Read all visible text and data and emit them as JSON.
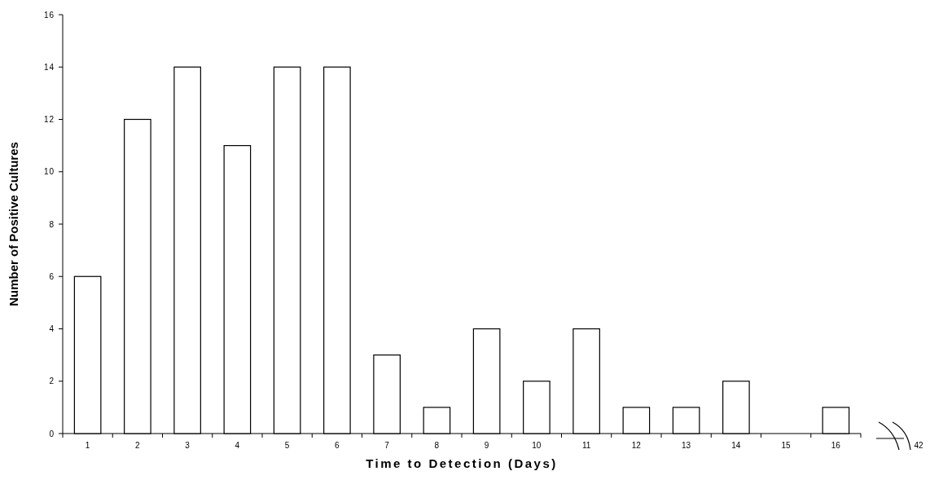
{
  "chart_data": {
    "type": "bar",
    "xlabel": "Time to Detection (Days)",
    "ylabel": "Number of Positive Cultures",
    "categories": [
      "1",
      "2",
      "3",
      "4",
      "5",
      "6",
      "7",
      "8",
      "9",
      "10",
      "11",
      "12",
      "13",
      "14",
      "15",
      "16",
      "42"
    ],
    "values": [
      6,
      12,
      14,
      11,
      14,
      14,
      3,
      1,
      4,
      2,
      4,
      1,
      1,
      2,
      0,
      1,
      null
    ],
    "color": "#ffffff",
    "ylim": [
      0,
      16
    ],
    "yticks": [
      0,
      2,
      4,
      6,
      8,
      10,
      12,
      14,
      16
    ],
    "grid": false
  }
}
